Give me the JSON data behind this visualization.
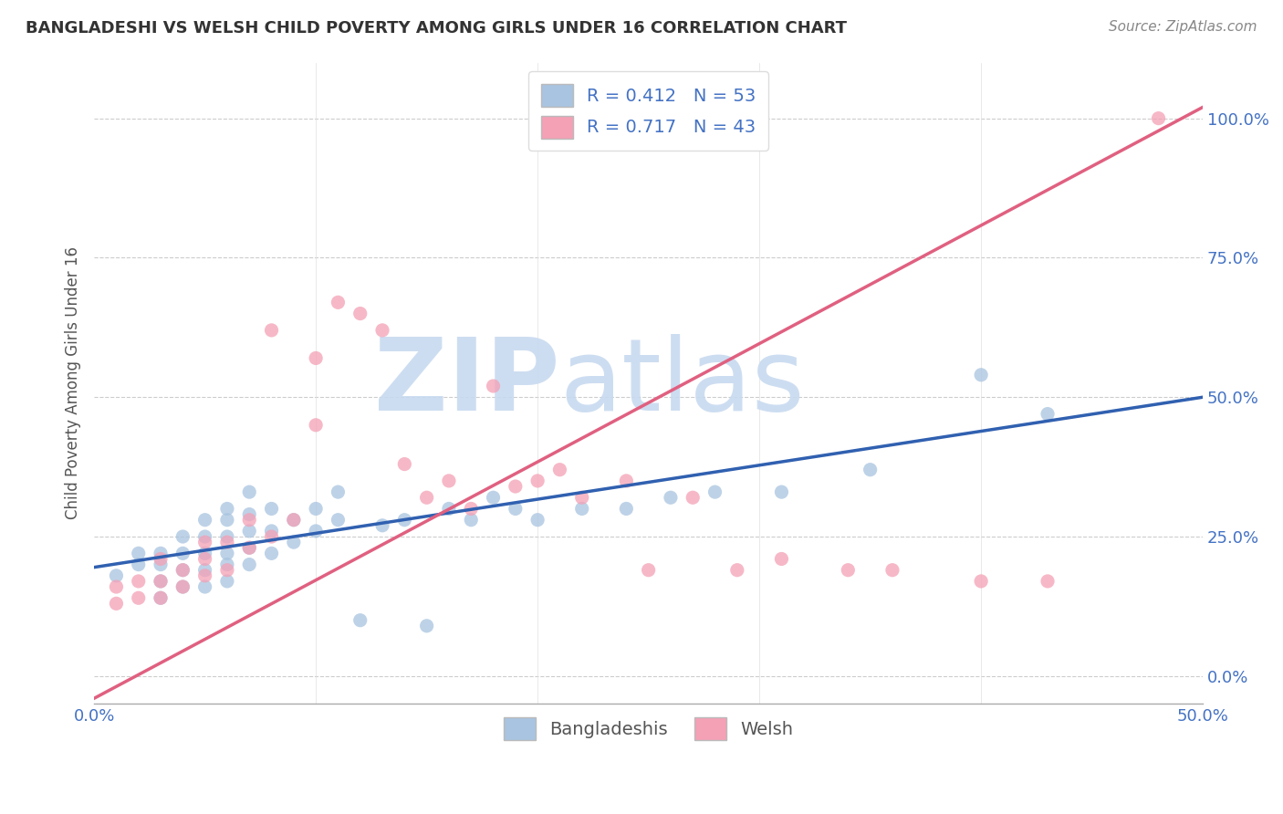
{
  "title": "BANGLADESHI VS WELSH CHILD POVERTY AMONG GIRLS UNDER 16 CORRELATION CHART",
  "source": "Source: ZipAtlas.com",
  "ylabel": "Child Poverty Among Girls Under 16",
  "xlim": [
    0.0,
    0.5
  ],
  "ylim": [
    -0.05,
    1.1
  ],
  "yticks": [
    0.0,
    0.25,
    0.5,
    0.75,
    1.0
  ],
  "ytick_labels": [
    "0.0%",
    "25.0%",
    "50.0%",
    "75.0%",
    "100.0%"
  ],
  "xticks": [
    0.0,
    0.1,
    0.2,
    0.3,
    0.4,
    0.5
  ],
  "xtick_labels": [
    "0.0%",
    "",
    "",
    "",
    "",
    "50.0%"
  ],
  "bangladeshi_R": 0.412,
  "bangladeshi_N": 53,
  "welsh_R": 0.717,
  "welsh_N": 43,
  "bangladeshi_color": "#a8c4e0",
  "welsh_color": "#f4a0b5",
  "bangladeshi_line_color": "#3060b0",
  "welsh_line_color": "#e06080",
  "watermark_zip": "ZIP",
  "watermark_atlas": "atlas",
  "watermark_color": "#c8daf0",
  "bangladeshi_scatter_x": [
    0.01,
    0.02,
    0.02,
    0.03,
    0.03,
    0.03,
    0.03,
    0.04,
    0.04,
    0.04,
    0.04,
    0.05,
    0.05,
    0.05,
    0.05,
    0.05,
    0.06,
    0.06,
    0.06,
    0.06,
    0.06,
    0.06,
    0.07,
    0.07,
    0.07,
    0.07,
    0.07,
    0.08,
    0.08,
    0.08,
    0.09,
    0.09,
    0.1,
    0.1,
    0.11,
    0.11,
    0.12,
    0.13,
    0.14,
    0.15,
    0.16,
    0.17,
    0.18,
    0.19,
    0.2,
    0.22,
    0.24,
    0.26,
    0.28,
    0.31,
    0.35,
    0.4,
    0.43
  ],
  "bangladeshi_scatter_y": [
    0.18,
    0.2,
    0.22,
    0.14,
    0.17,
    0.2,
    0.22,
    0.16,
    0.19,
    0.22,
    0.25,
    0.16,
    0.19,
    0.22,
    0.25,
    0.28,
    0.17,
    0.2,
    0.22,
    0.25,
    0.28,
    0.3,
    0.2,
    0.23,
    0.26,
    0.29,
    0.33,
    0.22,
    0.26,
    0.3,
    0.24,
    0.28,
    0.26,
    0.3,
    0.28,
    0.33,
    0.1,
    0.27,
    0.28,
    0.09,
    0.3,
    0.28,
    0.32,
    0.3,
    0.28,
    0.3,
    0.3,
    0.32,
    0.33,
    0.33,
    0.37,
    0.54,
    0.47
  ],
  "welsh_scatter_x": [
    0.01,
    0.01,
    0.02,
    0.02,
    0.03,
    0.03,
    0.03,
    0.04,
    0.04,
    0.05,
    0.05,
    0.05,
    0.06,
    0.06,
    0.07,
    0.07,
    0.08,
    0.08,
    0.09,
    0.1,
    0.1,
    0.11,
    0.12,
    0.13,
    0.14,
    0.15,
    0.16,
    0.17,
    0.18,
    0.19,
    0.2,
    0.21,
    0.22,
    0.24,
    0.25,
    0.27,
    0.29,
    0.31,
    0.34,
    0.36,
    0.4,
    0.43,
    0.48
  ],
  "welsh_scatter_y": [
    0.13,
    0.16,
    0.14,
    0.17,
    0.14,
    0.17,
    0.21,
    0.16,
    0.19,
    0.18,
    0.21,
    0.24,
    0.19,
    0.24,
    0.23,
    0.28,
    0.62,
    0.25,
    0.28,
    0.57,
    0.45,
    0.67,
    0.65,
    0.62,
    0.38,
    0.32,
    0.35,
    0.3,
    0.52,
    0.34,
    0.35,
    0.37,
    0.32,
    0.35,
    0.19,
    0.32,
    0.19,
    0.21,
    0.19,
    0.19,
    0.17,
    0.17,
    1.0
  ],
  "bangladeshi_line_x": [
    0.0,
    0.5
  ],
  "bangladeshi_line_y": [
    0.195,
    0.5
  ],
  "welsh_line_x": [
    0.0,
    0.5
  ],
  "welsh_line_y": [
    -0.04,
    1.02
  ]
}
